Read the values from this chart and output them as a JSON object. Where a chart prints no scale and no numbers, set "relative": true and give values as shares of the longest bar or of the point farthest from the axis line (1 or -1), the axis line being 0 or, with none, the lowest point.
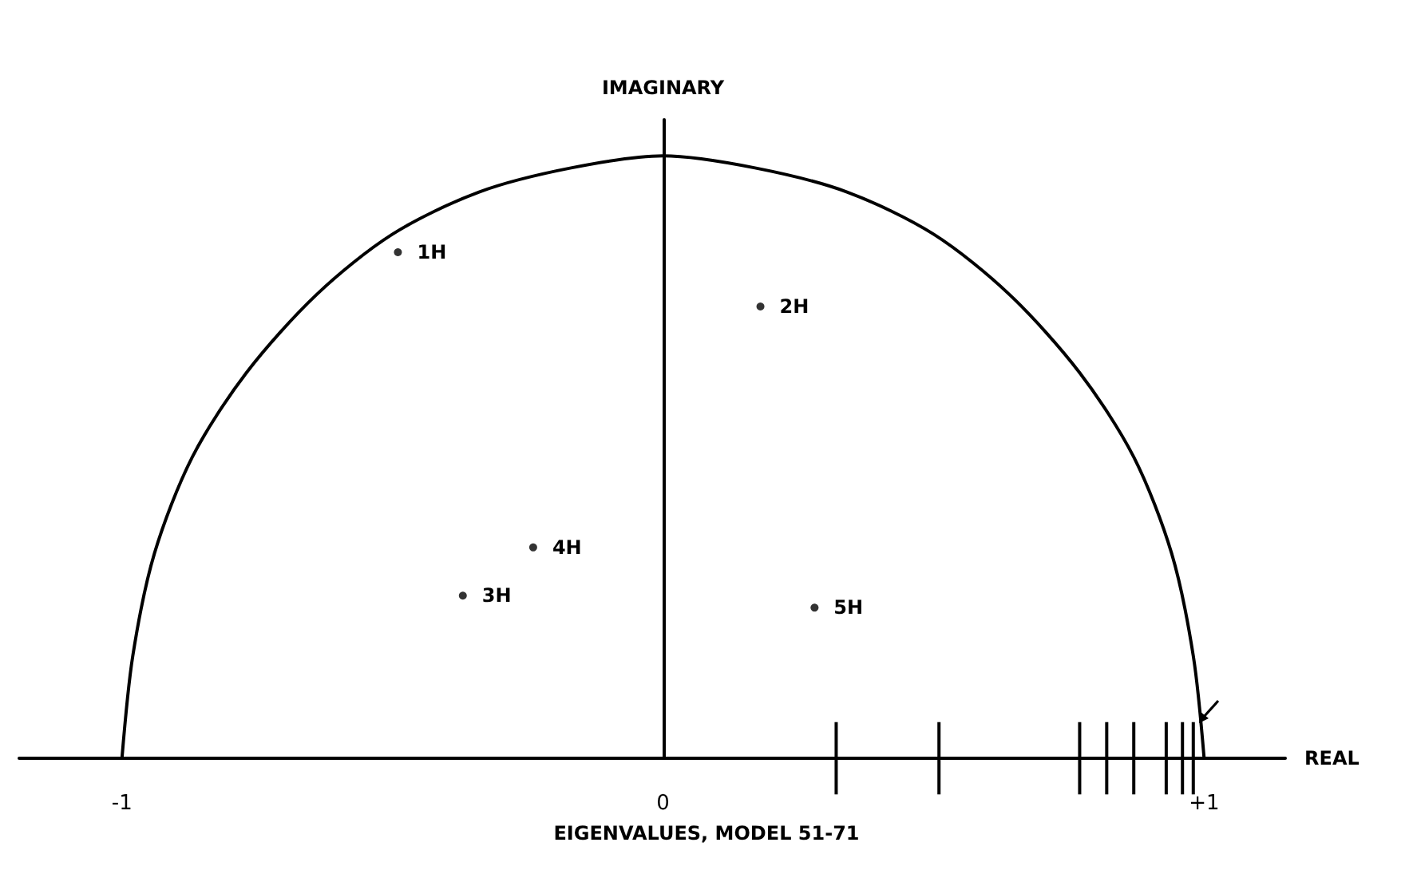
{
  "chart_data": {
    "type": "scatter",
    "title": "EIGENVALUES, MODEL 51-71",
    "xlabel": "REAL",
    "ylabel": "IMAGINARY",
    "xlim": [
      -1.19,
      1.15
    ],
    "relative": true,
    "xticks": [
      {
        "value": -1,
        "label": "-1"
      },
      0,
      {
        "value": 1,
        "label": "+1"
      }
    ],
    "tick_labels": "x",
    "marker": "circle",
    "series": [
      {
        "type": "line",
        "color": "#000000",
        "marker": "none",
        "x": [
          1,
          0.98,
          0.94,
          0.87,
          0.77,
          0.64,
          0.5,
          0.34,
          0.17,
          0,
          -0.17,
          -0.34,
          -0.5,
          -0.64,
          -0.77,
          -0.87,
          -0.94,
          -0.98,
          -1
        ],
        "values": [
          0,
          0.17,
          0.34,
          0.5,
          0.64,
          0.77,
          0.87,
          0.94,
          0.98,
          1,
          0.98,
          0.94,
          0.87,
          0.77,
          0.64,
          0.5,
          0.34,
          0.17,
          0
        ]
      },
      {
        "color": "#000000",
        "x": [
          -0.49,
          0.18,
          -0.37,
          -0.24,
          0.28
        ],
        "values": [
          0.84,
          0.75,
          0.27,
          0.35,
          0.25
        ]
      },
      {
        "type": "bar",
        "color": "#000000",
        "x": [
          0.32,
          0.51,
          0.77,
          0.82,
          0.87,
          0.93,
          0.96,
          0.98
        ],
        "values": [
          0.06,
          0.06,
          0.06,
          0.06,
          0.06,
          0.06,
          0.06,
          0.06
        ]
      },
      {
        "type": "bar",
        "color": "#000000",
        "x": [
          0.32,
          0.51,
          0.77,
          0.82,
          0.87,
          0.93,
          0.96,
          0.98
        ],
        "values": [
          -0.06,
          -0.06,
          -0.06,
          -0.06,
          -0.06,
          -0.06,
          -0.06,
          -0.06
        ]
      }
    ],
    "annotations": [
      {
        "text": "1H",
        "x": -0.49,
        "y": 0.84
      },
      {
        "text": "2H",
        "x": 0.18,
        "y": 0.75
      },
      {
        "text": "3H",
        "x": -0.37,
        "y": 0.27
      },
      {
        "text": "4H",
        "x": -0.24,
        "y": 0.35
      },
      {
        "text": "5H",
        "x": 0.28,
        "y": 0.25
      }
    ]
  }
}
